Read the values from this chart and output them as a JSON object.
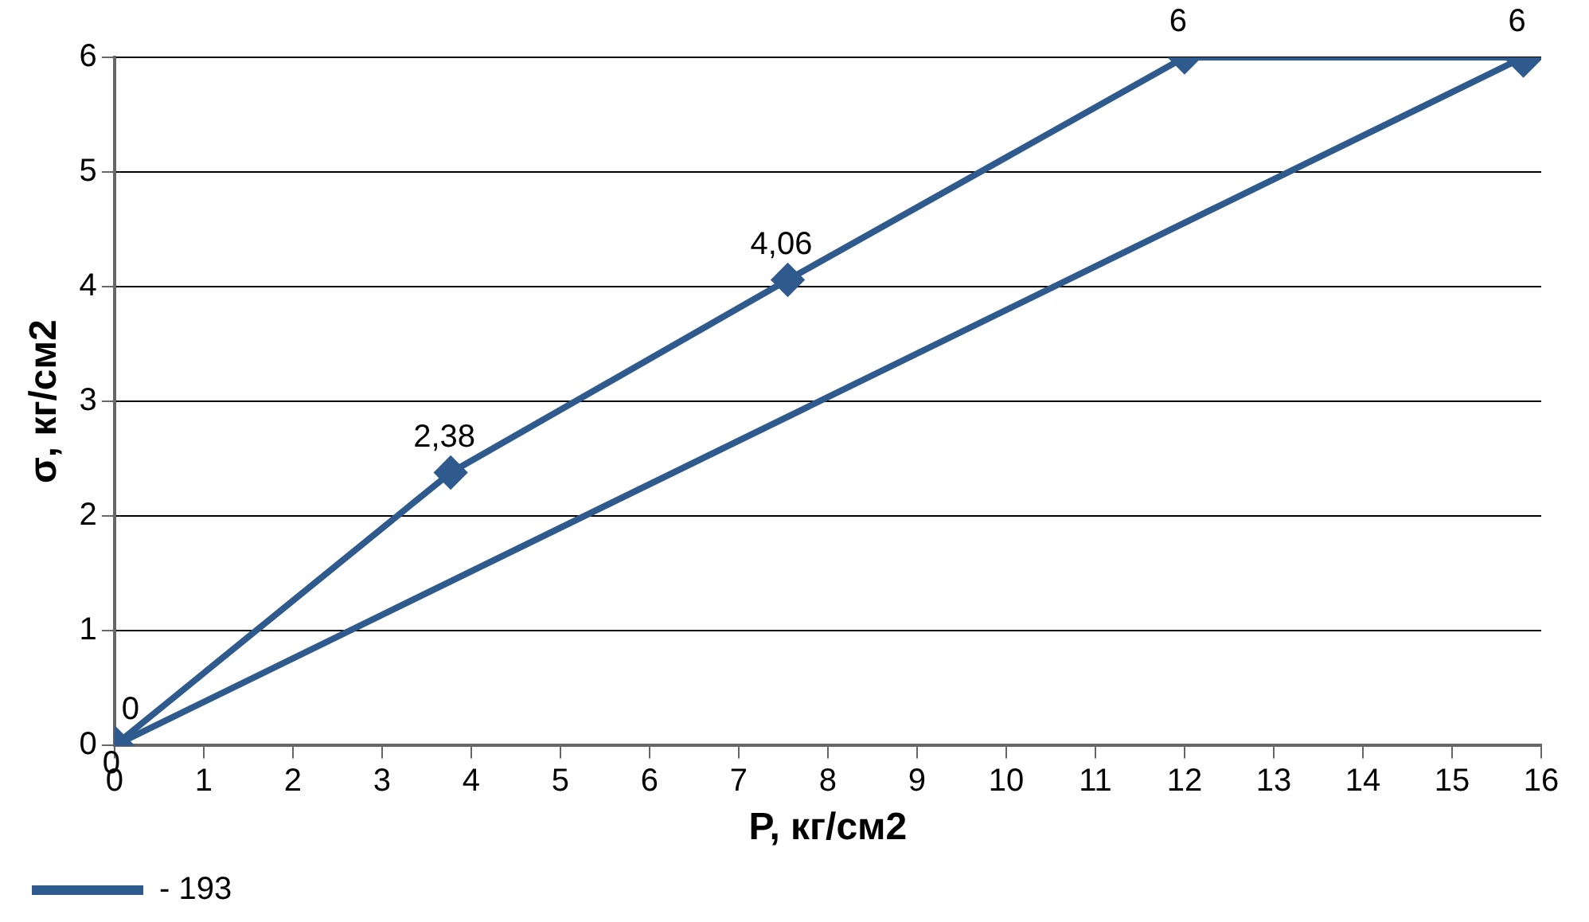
{
  "chart_data": {
    "type": "line",
    "xlabel": "P, кг/см2",
    "ylabel": "σ, кг/см2",
    "series": [
      {
        "name": "- 193",
        "color": "#2e5a8e",
        "x": [
          0,
          3.77,
          7.55,
          12,
          15.8
        ],
        "values": [
          0,
          2.38,
          4.06,
          6,
          6
        ],
        "value_labels": [
          "0",
          "2,38",
          "4,06",
          "6",
          "6"
        ]
      },
      {
        "color": "#2e5a8e",
        "x": [
          0,
          15.8
        ],
        "values": [
          0,
          6
        ],
        "value_labels": [
          "0",
          null
        ]
      }
    ],
    "xlim": [
      0,
      16
    ],
    "xticks": [
      0,
      1,
      2,
      3,
      4,
      5,
      6,
      7,
      8,
      9,
      10,
      11,
      12,
      13,
      14,
      15,
      16
    ],
    "ylim": [
      0,
      6
    ],
    "yticks": [
      0,
      1,
      2,
      3,
      4,
      5,
      6
    ],
    "grid": "y",
    "legend": "bottom left",
    "marker": "diamond",
    "line_style": "solid"
  }
}
